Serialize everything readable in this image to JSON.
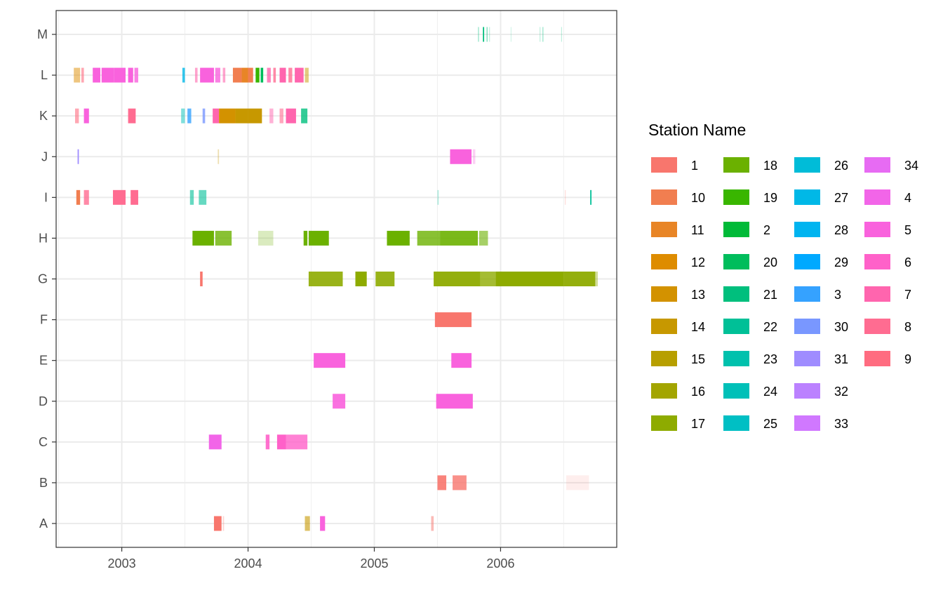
{
  "chart_data": {
    "type": "timeline",
    "xlabel": "",
    "ylabel": "",
    "x_axis": {
      "range": [
        2002.48,
        2006.92
      ],
      "ticks": [
        2003,
        2004,
        2005,
        2006
      ],
      "tick_labels": [
        "2003",
        "2004",
        "2005",
        "2006"
      ]
    },
    "y_axis": {
      "categories": [
        "A",
        "B",
        "C",
        "D",
        "E",
        "F",
        "G",
        "H",
        "I",
        "J",
        "K",
        "L",
        "M"
      ]
    },
    "grid": true,
    "legend": {
      "title": "Station Name",
      "position": "right",
      "columns": 4,
      "entries": [
        {
          "label": "1",
          "color": "#F8766D"
        },
        {
          "label": "10",
          "color": "#F17E50"
        },
        {
          "label": "11",
          "color": "#E88526"
        },
        {
          "label": "12",
          "color": "#DE8C00"
        },
        {
          "label": "13",
          "color": "#D39200"
        },
        {
          "label": "14",
          "color": "#C79800"
        },
        {
          "label": "15",
          "color": "#B79F00"
        },
        {
          "label": "16",
          "color": "#A3A500"
        },
        {
          "label": "17",
          "color": "#8EAB00"
        },
        {
          "label": "18",
          "color": "#6BB100"
        },
        {
          "label": "19",
          "color": "#39B600"
        },
        {
          "label": "2",
          "color": "#00BA38"
        },
        {
          "label": "20",
          "color": "#00BD5C"
        },
        {
          "label": "21",
          "color": "#00BF7D"
        },
        {
          "label": "22",
          "color": "#00C097"
        },
        {
          "label": "23",
          "color": "#00C1AD"
        },
        {
          "label": "24",
          "color": "#00C0B8"
        },
        {
          "label": "25",
          "color": "#00BFC4"
        },
        {
          "label": "26",
          "color": "#00BCD8"
        },
        {
          "label": "27",
          "color": "#00B8E7"
        },
        {
          "label": "28",
          "color": "#00B4F0"
        },
        {
          "label": "29",
          "color": "#00A9FF"
        },
        {
          "label": "3",
          "color": "#35A2FF"
        },
        {
          "label": "30",
          "color": "#7997FF"
        },
        {
          "label": "31",
          "color": "#9F8CFF"
        },
        {
          "label": "32",
          "color": "#BB81FF"
        },
        {
          "label": "33",
          "color": "#D078FF"
        },
        {
          "label": "34",
          "color": "#E76BF3"
        },
        {
          "label": "4",
          "color": "#F265E8"
        },
        {
          "label": "5",
          "color": "#F962DD"
        },
        {
          "label": "6",
          "color": "#FF61C9"
        },
        {
          "label": "7",
          "color": "#FF65AE"
        },
        {
          "label": "8",
          "color": "#FF6C91"
        },
        {
          "label": "9",
          "color": "#FF6C80"
        }
      ]
    },
    "series": [
      {
        "category": "M",
        "bars": [
          {
            "station": "21",
            "start": 2005.82,
            "end": 2005.83,
            "opacity": 0.3
          },
          {
            "station": "21",
            "start": 2005.86,
            "end": 2005.87,
            "opacity": 1.0
          },
          {
            "station": "21",
            "start": 2005.89,
            "end": 2005.895,
            "opacity": 0.7
          },
          {
            "station": "21",
            "start": 2005.91,
            "end": 2005.915,
            "opacity": 0.3
          },
          {
            "station": "21",
            "start": 2006.08,
            "end": 2006.085,
            "opacity": 0.2
          },
          {
            "station": "21",
            "start": 2006.31,
            "end": 2006.315,
            "opacity": 0.3
          },
          {
            "station": "21",
            "start": 2006.33,
            "end": 2006.34,
            "opacity": 0.3
          },
          {
            "station": "21",
            "start": 2006.48,
            "end": 2006.485,
            "opacity": 0.3
          }
        ]
      },
      {
        "category": "L",
        "bars": [
          {
            "station": "12",
            "start": 2002.62,
            "end": 2002.67,
            "opacity": 0.5
          },
          {
            "station": "9",
            "start": 2002.68,
            "end": 2002.7,
            "opacity": 0.6
          },
          {
            "station": "5",
            "start": 2002.77,
            "end": 2002.83,
            "opacity": 1.0
          },
          {
            "station": "5",
            "start": 2002.84,
            "end": 2002.94,
            "opacity": 1.0
          },
          {
            "station": "5",
            "start": 2002.94,
            "end": 2003.03,
            "opacity": 1.0
          },
          {
            "station": "5",
            "start": 2003.05,
            "end": 2003.09,
            "opacity": 1.0
          },
          {
            "station": "5",
            "start": 2003.1,
            "end": 2003.13,
            "opacity": 0.8
          },
          {
            "station": "27",
            "start": 2003.48,
            "end": 2003.5,
            "opacity": 0.8
          },
          {
            "station": "7",
            "start": 2003.58,
            "end": 2003.6,
            "opacity": 0.6
          },
          {
            "station": "5",
            "start": 2003.62,
            "end": 2003.73,
            "opacity": 1.0
          },
          {
            "station": "5",
            "start": 2003.74,
            "end": 2003.78,
            "opacity": 0.8
          },
          {
            "station": "7",
            "start": 2003.8,
            "end": 2003.82,
            "opacity": 0.6
          },
          {
            "station": "10",
            "start": 2003.88,
            "end": 2003.95,
            "opacity": 1.0
          },
          {
            "station": "11",
            "start": 2003.95,
            "end": 2004.0,
            "opacity": 1.0
          },
          {
            "station": "10",
            "start": 2004.0,
            "end": 2004.04,
            "opacity": 1.0
          },
          {
            "station": "19",
            "start": 2004.06,
            "end": 2004.09,
            "opacity": 1.0
          },
          {
            "station": "20",
            "start": 2004.1,
            "end": 2004.12,
            "opacity": 1.0
          },
          {
            "station": "7",
            "start": 2004.15,
            "end": 2004.18,
            "opacity": 0.8
          },
          {
            "station": "8",
            "start": 2004.2,
            "end": 2004.22,
            "opacity": 0.8
          },
          {
            "station": "7",
            "start": 2004.25,
            "end": 2004.3,
            "opacity": 1.0
          },
          {
            "station": "8",
            "start": 2004.32,
            "end": 2004.35,
            "opacity": 0.8
          },
          {
            "station": "7",
            "start": 2004.37,
            "end": 2004.44,
            "opacity": 1.0
          },
          {
            "station": "14",
            "start": 2004.45,
            "end": 2004.48,
            "opacity": 0.5
          }
        ]
      },
      {
        "category": "K",
        "bars": [
          {
            "station": "9",
            "start": 2002.63,
            "end": 2002.66,
            "opacity": 0.6
          },
          {
            "station": "5",
            "start": 2002.7,
            "end": 2002.74,
            "opacity": 1.0
          },
          {
            "station": "8",
            "start": 2003.05,
            "end": 2003.11,
            "opacity": 1.0
          },
          {
            "station": "24",
            "start": 2003.47,
            "end": 2003.5,
            "opacity": 0.5
          },
          {
            "station": "3",
            "start": 2003.52,
            "end": 2003.55,
            "opacity": 0.8
          },
          {
            "station": "30",
            "start": 2003.64,
            "end": 2003.66,
            "opacity": 0.8
          },
          {
            "station": "7",
            "start": 2003.72,
            "end": 2003.77,
            "opacity": 1.0
          },
          {
            "station": "13",
            "start": 2003.77,
            "end": 2003.9,
            "opacity": 1.0
          },
          {
            "station": "14",
            "start": 2003.9,
            "end": 2004.0,
            "opacity": 1.0
          },
          {
            "station": "14",
            "start": 2004.0,
            "end": 2004.11,
            "opacity": 1.0
          },
          {
            "station": "7",
            "start": 2004.17,
            "end": 2004.2,
            "opacity": 0.5
          },
          {
            "station": "8",
            "start": 2004.25,
            "end": 2004.28,
            "opacity": 0.6
          },
          {
            "station": "7",
            "start": 2004.3,
            "end": 2004.38,
            "opacity": 1.0
          },
          {
            "station": "21",
            "start": 2004.42,
            "end": 2004.47,
            "opacity": 0.8
          }
        ]
      },
      {
        "category": "J",
        "bars": [
          {
            "station": "31",
            "start": 2002.65,
            "end": 2002.66,
            "opacity": 1.0
          },
          {
            "station": "14",
            "start": 2003.76,
            "end": 2003.77,
            "opacity": 0.3
          },
          {
            "station": "5",
            "start": 2005.6,
            "end": 2005.77,
            "opacity": 1.0
          },
          {
            "station": "5",
            "start": 2005.78,
            "end": 2005.8,
            "opacity": 0.3
          }
        ]
      },
      {
        "category": "I",
        "bars": [
          {
            "station": "10",
            "start": 2002.64,
            "end": 2002.67,
            "opacity": 1.0
          },
          {
            "station": "8",
            "start": 2002.7,
            "end": 2002.74,
            "opacity": 0.8
          },
          {
            "station": "8",
            "start": 2002.93,
            "end": 2003.03,
            "opacity": 1.0
          },
          {
            "station": "8",
            "start": 2003.07,
            "end": 2003.13,
            "opacity": 1.0
          },
          {
            "station": "22",
            "start": 2003.54,
            "end": 2003.57,
            "opacity": 0.6
          },
          {
            "station": "22",
            "start": 2003.61,
            "end": 2003.67,
            "opacity": 0.6
          },
          {
            "station": "22",
            "start": 2005.5,
            "end": 2005.51,
            "opacity": 0.3
          },
          {
            "station": "1",
            "start": 2006.51,
            "end": 2006.515,
            "opacity": 0.3
          },
          {
            "station": "22",
            "start": 2006.71,
            "end": 2006.72,
            "opacity": 1.0
          }
        ]
      },
      {
        "category": "H",
        "bars": [
          {
            "station": "18",
            "start": 2003.56,
            "end": 2003.73,
            "opacity": 1.0
          },
          {
            "station": "18",
            "start": 2003.74,
            "end": 2003.87,
            "opacity": 0.8
          },
          {
            "station": "18",
            "start": 2004.08,
            "end": 2004.2,
            "opacity": 0.25
          },
          {
            "station": "18",
            "start": 2004.44,
            "end": 2004.47,
            "opacity": 1.0
          },
          {
            "station": "18",
            "start": 2004.48,
            "end": 2004.64,
            "opacity": 1.0
          },
          {
            "station": "18",
            "start": 2005.1,
            "end": 2005.28,
            "opacity": 1.0
          },
          {
            "station": "18",
            "start": 2005.34,
            "end": 2005.52,
            "opacity": 0.8
          },
          {
            "station": "18",
            "start": 2005.52,
            "end": 2005.82,
            "opacity": 0.9
          },
          {
            "station": "18",
            "start": 2005.83,
            "end": 2005.9,
            "opacity": 0.6
          }
        ]
      },
      {
        "category": "G",
        "bars": [
          {
            "station": "1",
            "start": 2003.62,
            "end": 2003.64,
            "opacity": 1.0
          },
          {
            "station": "17",
            "start": 2004.48,
            "end": 2004.75,
            "opacity": 0.9
          },
          {
            "station": "17",
            "start": 2004.85,
            "end": 2004.94,
            "opacity": 1.0
          },
          {
            "station": "17",
            "start": 2005.01,
            "end": 2005.16,
            "opacity": 0.9
          },
          {
            "station": "17",
            "start": 2005.47,
            "end": 2005.84,
            "opacity": 0.95
          },
          {
            "station": "17",
            "start": 2005.84,
            "end": 2005.96,
            "opacity": 0.8
          },
          {
            "station": "17",
            "start": 2005.96,
            "end": 2006.5,
            "opacity": 1.0
          },
          {
            "station": "17",
            "start": 2006.5,
            "end": 2006.75,
            "opacity": 0.95
          },
          {
            "station": "17",
            "start": 2006.75,
            "end": 2006.77,
            "opacity": 0.4
          }
        ]
      },
      {
        "category": "F",
        "bars": [
          {
            "station": "1",
            "start": 2005.48,
            "end": 2005.77,
            "opacity": 1.0
          }
        ]
      },
      {
        "category": "E",
        "bars": [
          {
            "station": "5",
            "start": 2004.52,
            "end": 2004.77,
            "opacity": 1.0
          },
          {
            "station": "5",
            "start": 2005.61,
            "end": 2005.77,
            "opacity": 1.0
          }
        ]
      },
      {
        "category": "D",
        "bars": [
          {
            "station": "5",
            "start": 2004.67,
            "end": 2004.77,
            "opacity": 0.9
          },
          {
            "station": "5",
            "start": 2005.49,
            "end": 2005.78,
            "opacity": 1.0
          }
        ]
      },
      {
        "category": "C",
        "bars": [
          {
            "station": "4",
            "start": 2003.69,
            "end": 2003.79,
            "opacity": 1.0
          },
          {
            "station": "6",
            "start": 2004.14,
            "end": 2004.17,
            "opacity": 0.9
          },
          {
            "station": "6",
            "start": 2004.23,
            "end": 2004.3,
            "opacity": 1.0
          },
          {
            "station": "6",
            "start": 2004.3,
            "end": 2004.47,
            "opacity": 0.8
          }
        ]
      },
      {
        "category": "B",
        "bars": [
          {
            "station": "1",
            "start": 2005.5,
            "end": 2005.57,
            "opacity": 0.9
          },
          {
            "station": "1",
            "start": 2005.62,
            "end": 2005.73,
            "opacity": 0.8
          },
          {
            "station": "1",
            "start": 2006.52,
            "end": 2006.7,
            "opacity": 0.12
          }
        ]
      },
      {
        "category": "A",
        "bars": [
          {
            "station": "1",
            "start": 2003.73,
            "end": 2003.79,
            "opacity": 1.0
          },
          {
            "station": "1",
            "start": 2003.8,
            "end": 2003.81,
            "opacity": 0.3
          },
          {
            "station": "14",
            "start": 2004.45,
            "end": 2004.49,
            "opacity": 0.6
          },
          {
            "station": "5",
            "start": 2004.57,
            "end": 2004.61,
            "opacity": 1.0
          },
          {
            "station": "1",
            "start": 2005.45,
            "end": 2005.47,
            "opacity": 0.5
          }
        ]
      }
    ]
  }
}
